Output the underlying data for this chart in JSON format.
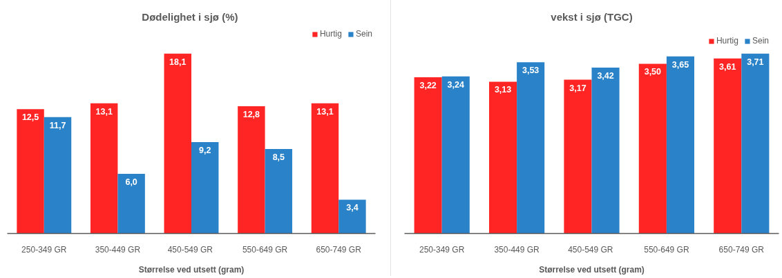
{
  "chart_data": [
    {
      "type": "bar",
      "title": "Dødelighet i  sjø (%)",
      "xlabel": "Størrelse ved utsett (gram)",
      "categories": [
        "250-349 GR",
        "350-449 GR",
        "450-549  GR",
        "550-649 GR",
        "650-749 GR"
      ],
      "series": [
        {
          "name": "Hurtig",
          "color": "#ff2525",
          "values": [
            12.5,
            13.1,
            18.1,
            12.8,
            13.1
          ],
          "value_labels": [
            "12,5",
            "13,1",
            "18,1",
            "12,8",
            "13,1"
          ]
        },
        {
          "name": "Sein",
          "color": "#2a82c8",
          "values": [
            11.7,
            6.0,
            9.2,
            8.5,
            3.4
          ],
          "value_labels": [
            "11,7",
            "6,0",
            "9,2",
            "8,5",
            "3,4"
          ]
        }
      ],
      "tick_labels": "x",
      "legend": "top right"
    },
    {
      "type": "bar",
      "title": "vekst i sjø (TGC)",
      "xlabel": "Størrelse ved utsett (gram)",
      "categories": [
        "250-349 GR",
        "350-449 GR",
        "450-549  GR",
        "550-649 GR",
        "650-749 GR"
      ],
      "series": [
        {
          "name": "Hurtig",
          "color": "#ff2525",
          "values": [
            3.22,
            3.13,
            3.17,
            3.5,
            3.61
          ],
          "value_labels": [
            "3,22",
            "3,13",
            "3,17",
            "3,50",
            "3,61"
          ]
        },
        {
          "name": "Sein",
          "color": "#2a82c8",
          "values": [
            3.24,
            3.53,
            3.42,
            3.65,
            3.71
          ],
          "value_labels": [
            "3,24",
            "3,53",
            "3,42",
            "3,65",
            "3,71"
          ]
        }
      ],
      "tick_labels": "x",
      "legend": "top right"
    }
  ]
}
